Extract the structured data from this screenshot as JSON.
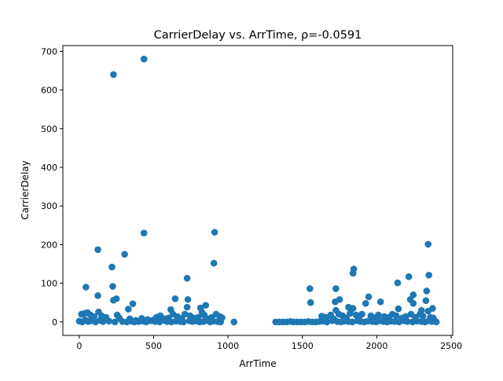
{
  "chart_data": {
    "type": "scatter",
    "title": "CarrierDelay vs. ArrTime, ρ=-0.0591",
    "xlabel": "ArrTime",
    "ylabel": "CarrierDelay",
    "xlim": [
      -110,
      2510
    ],
    "ylim": [
      -35,
      715
    ],
    "xticks": [
      0,
      500,
      1000,
      1500,
      2000,
      2500
    ],
    "yticks": [
      0,
      100,
      200,
      300,
      400,
      500,
      600,
      700
    ],
    "xtick_labels": [
      "0",
      "500",
      "1000",
      "1500",
      "2000",
      "2500"
    ],
    "ytick_labels": [
      "0",
      "100",
      "200",
      "300",
      "400",
      "500",
      "600",
      "700"
    ],
    "grid": false,
    "legend": "none",
    "series_color": "#1f77b4",
    "points": [
      [
        435,
        680
      ],
      [
        230,
        640
      ],
      [
        435,
        230
      ],
      [
        910,
        232
      ],
      [
        2345,
        201
      ],
      [
        125,
        187
      ],
      [
        305,
        175
      ],
      [
        905,
        152
      ],
      [
        220,
        142
      ],
      [
        1845,
        137
      ],
      [
        2350,
        121
      ],
      [
        1840,
        126
      ],
      [
        2215,
        117
      ],
      [
        725,
        113
      ],
      [
        2140,
        101
      ],
      [
        45,
        90
      ],
      [
        225,
        92
      ],
      [
        1550,
        86
      ],
      [
        1725,
        86
      ],
      [
        2335,
        80
      ],
      [
        125,
        68
      ],
      [
        1945,
        65
      ],
      [
        2245,
        70
      ],
      [
        230,
        56
      ],
      [
        250,
        60
      ],
      [
        645,
        60
      ],
      [
        730,
        58
      ],
      [
        1750,
        58
      ],
      [
        2225,
        58
      ],
      [
        360,
        47
      ],
      [
        1555,
        50
      ],
      [
        1720,
        52
      ],
      [
        2025,
        52
      ],
      [
        2245,
        48
      ],
      [
        2330,
        55
      ],
      [
        1925,
        48
      ],
      [
        850,
        43
      ],
      [
        815,
        36
      ],
      [
        2375,
        35
      ],
      [
        330,
        33
      ],
      [
        615,
        32
      ],
      [
        725,
        38
      ],
      [
        1810,
        38
      ],
      [
        1840,
        35
      ],
      [
        2145,
        34
      ],
      [
        1725,
        30
      ],
      [
        2345,
        28
      ],
      [
        2300,
        30
      ],
      [
        15,
        20
      ],
      [
        35,
        22
      ],
      [
        55,
        24
      ],
      [
        75,
        18
      ],
      [
        100,
        14
      ],
      [
        130,
        26
      ],
      [
        150,
        16
      ],
      [
        180,
        12
      ],
      [
        255,
        18
      ],
      [
        270,
        10
      ],
      [
        340,
        8
      ],
      [
        380,
        4
      ],
      [
        420,
        9
      ],
      [
        460,
        6
      ],
      [
        500,
        5
      ],
      [
        520,
        12
      ],
      [
        545,
        16
      ],
      [
        575,
        8
      ],
      [
        600,
        10
      ],
      [
        630,
        20
      ],
      [
        660,
        14
      ],
      [
        690,
        9
      ],
      [
        710,
        20
      ],
      [
        745,
        16
      ],
      [
        770,
        10
      ],
      [
        800,
        12
      ],
      [
        825,
        25
      ],
      [
        840,
        18
      ],
      [
        870,
        8
      ],
      [
        890,
        12
      ],
      [
        920,
        20
      ],
      [
        945,
        14
      ],
      [
        960,
        11
      ],
      [
        1630,
        15
      ],
      [
        1660,
        12
      ],
      [
        1690,
        18
      ],
      [
        1710,
        8
      ],
      [
        1745,
        20
      ],
      [
        1770,
        16
      ],
      [
        1795,
        10
      ],
      [
        1820,
        22
      ],
      [
        1860,
        18
      ],
      [
        1880,
        12
      ],
      [
        1900,
        20
      ],
      [
        1960,
        16
      ],
      [
        1985,
        10
      ],
      [
        2010,
        18
      ],
      [
        2050,
        14
      ],
      [
        2080,
        12
      ],
      [
        2105,
        20
      ],
      [
        2130,
        16
      ],
      [
        2170,
        10
      ],
      [
        2195,
        14
      ],
      [
        2230,
        20
      ],
      [
        2260,
        12
      ],
      [
        2290,
        20
      ],
      [
        2310,
        15
      ],
      [
        2360,
        12
      ],
      [
        2380,
        10
      ],
      [
        0,
        2
      ],
      [
        20,
        0
      ],
      [
        40,
        5
      ],
      [
        60,
        1
      ],
      [
        80,
        3
      ],
      [
        110,
        0
      ],
      [
        140,
        4
      ],
      [
        160,
        1
      ],
      [
        200,
        2
      ],
      [
        240,
        0
      ],
      [
        290,
        1
      ],
      [
        320,
        0
      ],
      [
        350,
        2
      ],
      [
        370,
        0
      ],
      [
        400,
        1
      ],
      [
        430,
        2
      ],
      [
        450,
        0
      ],
      [
        480,
        3
      ],
      [
        510,
        1
      ],
      [
        540,
        0
      ],
      [
        560,
        4
      ],
      [
        590,
        1
      ],
      [
        620,
        0
      ],
      [
        650,
        2
      ],
      [
        680,
        1
      ],
      [
        700,
        0
      ],
      [
        740,
        3
      ],
      [
        760,
        1
      ],
      [
        790,
        2
      ],
      [
        810,
        0
      ],
      [
        835,
        1
      ],
      [
        860,
        4
      ],
      [
        880,
        0
      ],
      [
        900,
        2
      ],
      [
        930,
        1
      ],
      [
        950,
        0
      ],
      [
        1040,
        0
      ],
      [
        1320,
        0
      ],
      [
        1345,
        0
      ],
      [
        1370,
        0
      ],
      [
        1395,
        0
      ],
      [
        1420,
        1
      ],
      [
        1440,
        0
      ],
      [
        1465,
        0
      ],
      [
        1490,
        0
      ],
      [
        1515,
        0
      ],
      [
        1540,
        1
      ],
      [
        1565,
        0
      ],
      [
        1590,
        0
      ],
      [
        1615,
        1
      ],
      [
        1640,
        2
      ],
      [
        1665,
        0
      ],
      [
        1700,
        3
      ],
      [
        1735,
        1
      ],
      [
        1760,
        0
      ],
      [
        1785,
        2
      ],
      [
        1810,
        1
      ],
      [
        1835,
        0
      ],
      [
        1870,
        3
      ],
      [
        1890,
        1
      ],
      [
        1915,
        0
      ],
      [
        1940,
        2
      ],
      [
        1970,
        1
      ],
      [
        1995,
        0
      ],
      [
        2020,
        3
      ],
      [
        2045,
        1
      ],
      [
        2070,
        0
      ],
      [
        2095,
        2
      ],
      [
        2120,
        1
      ],
      [
        2150,
        0
      ],
      [
        2180,
        3
      ],
      [
        2205,
        1
      ],
      [
        2240,
        0
      ],
      [
        2270,
        2
      ],
      [
        2300,
        1
      ],
      [
        2325,
        0
      ],
      [
        2350,
        3
      ],
      [
        2370,
        1
      ],
      [
        2400,
        0
      ]
    ]
  }
}
